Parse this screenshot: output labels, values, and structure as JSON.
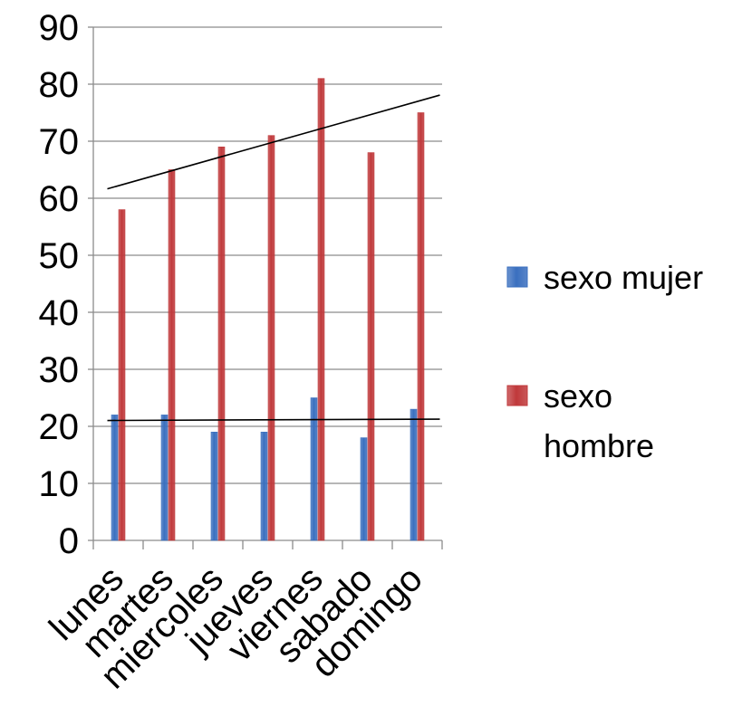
{
  "chart_data": {
    "type": "bar",
    "title": "",
    "xlabel": "",
    "ylabel": "",
    "categories": [
      "lunes",
      "martes",
      "miercoles",
      "jueves",
      "viernes",
      "sabado",
      "domingo"
    ],
    "series": [
      {
        "name": "sexo mujer",
        "color": "#3a6fbf",
        "values": [
          22,
          22,
          19,
          19,
          25,
          18,
          23
        ]
      },
      {
        "name": "sexo hombre",
        "color": "#c0393b",
        "values": [
          58,
          65,
          69,
          71,
          81,
          68,
          75
        ]
      }
    ],
    "trendlines": [
      {
        "series": "sexo mujer",
        "type": "linear",
        "color": "#000000"
      },
      {
        "series": "sexo hombre",
        "type": "linear",
        "color": "#000000"
      }
    ],
    "ylim": [
      0,
      90
    ],
    "yticks": [
      0,
      10,
      20,
      30,
      40,
      50,
      60,
      70,
      80,
      90
    ],
    "grid": true,
    "legend": {
      "position": "right",
      "entries": [
        {
          "label_lines": [
            "sexo mujer"
          ],
          "color": "#3a6fbf"
        },
        {
          "label_lines": [
            "sexo",
            "hombre"
          ],
          "color": "#c0393b"
        }
      ]
    }
  }
}
